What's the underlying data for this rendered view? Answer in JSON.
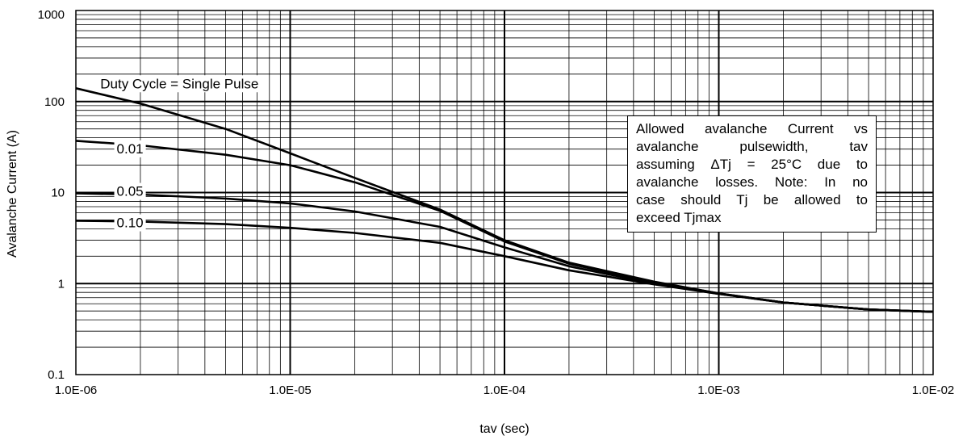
{
  "chart_data": {
    "type": "line",
    "title": "",
    "xlabel": "tav (sec)",
    "ylabel": "Avalanche Current (A)",
    "x_scale": "log",
    "y_scale": "log",
    "xlim": [
      1e-06,
      0.01
    ],
    "ylim": [
      0.1,
      1000
    ],
    "grid": true,
    "x_tick_labels": [
      "1.0E-06",
      "1.0E-05",
      "1.0E-04",
      "1.0E-03",
      "1.0E-02"
    ],
    "y_tick_labels": [
      "0.1",
      "1",
      "10",
      "100",
      "1000"
    ],
    "series": [
      {
        "name": "Duty Cycle = Single Pulse",
        "x": [
          1e-06,
          2e-06,
          5e-06,
          1e-05,
          2e-05,
          5e-05,
          0.0001,
          0.0002,
          0.0005,
          0.001,
          0.002,
          0.005,
          0.01
        ],
        "y": [
          140,
          95,
          50,
          27,
          14.5,
          6.5,
          3.0,
          1.7,
          1.05,
          0.78,
          0.62,
          0.52,
          0.49
        ]
      },
      {
        "name": "0.01",
        "x": [
          1e-06,
          2e-06,
          5e-06,
          1e-05,
          2e-05,
          5e-05,
          0.0001,
          0.0002,
          0.0005,
          0.001,
          0.002,
          0.005,
          0.01
        ],
        "y": [
          37,
          33,
          26,
          20,
          13,
          6.3,
          2.9,
          1.65,
          1.03,
          0.78,
          0.62,
          0.52,
          0.49
        ]
      },
      {
        "name": "0.05",
        "x": [
          1e-06,
          2e-06,
          5e-06,
          1e-05,
          2e-05,
          5e-05,
          0.0001,
          0.0002,
          0.0005,
          0.001,
          0.002,
          0.005,
          0.01
        ],
        "y": [
          9.8,
          9.5,
          8.6,
          7.6,
          6.2,
          4.2,
          2.5,
          1.55,
          1.0,
          0.77,
          0.62,
          0.52,
          0.49
        ]
      },
      {
        "name": "0.10",
        "x": [
          1e-06,
          2e-06,
          5e-06,
          1e-05,
          2e-05,
          5e-05,
          0.0001,
          0.0002,
          0.0005,
          0.001,
          0.002,
          0.005,
          0.01
        ],
        "y": [
          4.9,
          4.8,
          4.5,
          4.1,
          3.6,
          2.8,
          2.0,
          1.4,
          0.98,
          0.77,
          0.62,
          0.52,
          0.49
        ]
      }
    ],
    "note_lines": [
      "Allowed avalanche Current vs",
      "avalanche pulsewidth, tav",
      "assuming ΔTj = 25°C due to",
      "avalanche losses. Note: In no",
      "case should Tj be allowed to",
      "exceed Tjmax"
    ],
    "colors": {
      "line": "#000000",
      "grid": "#000000",
      "background": "#ffffff"
    }
  }
}
